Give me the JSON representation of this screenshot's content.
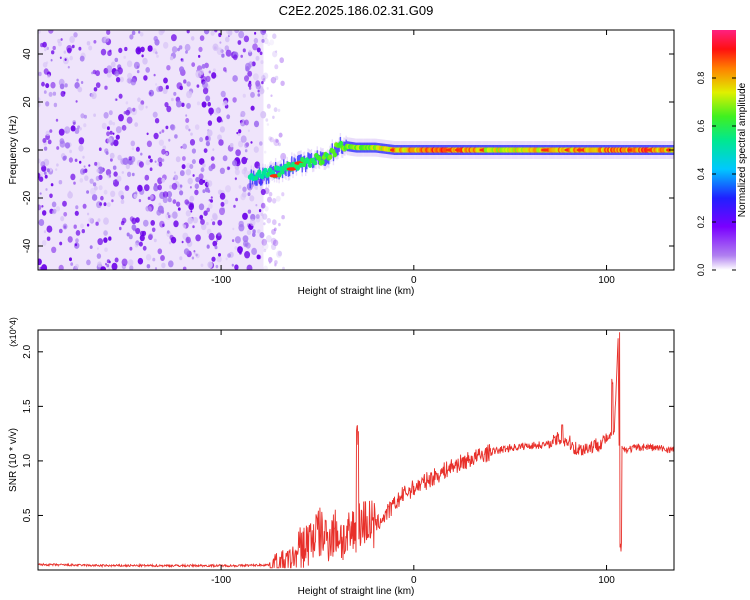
{
  "title": "C2E2.2025.186.02.31.G09",
  "colors": {
    "snr_line": "#e8302a",
    "frame": "#000000",
    "background": "#ffffff"
  },
  "chart_data": [
    {
      "type": "heatmap",
      "title": "C2E2.2025.186.02.31.G09",
      "xlabel": "Height of straight line (km)",
      "ylabel": "Frequency (Hz)",
      "xlim": [
        -195,
        135
      ],
      "ylim": [
        -50,
        50
      ],
      "xticks": [
        {
          "value": -100,
          "label": "-100"
        },
        {
          "value": 0,
          "label": "0"
        },
        {
          "value": 100,
          "label": "100"
        }
      ],
      "yticks": [
        {
          "value": -40,
          "label": "-40"
        },
        {
          "value": -20,
          "label": "-20"
        },
        {
          "value": 0,
          "label": "0"
        },
        {
          "value": 20,
          "label": "20"
        },
        {
          "value": 40,
          "label": "40"
        }
      ],
      "colorbar": {
        "label": "Normalized spectral amplitude",
        "range": [
          0,
          1
        ],
        "ticks": [
          {
            "value": 0.0,
            "label": "0.0"
          },
          {
            "value": 0.2,
            "label": "0.2"
          },
          {
            "value": 0.4,
            "label": "0.4"
          },
          {
            "value": 0.6,
            "label": "0.6"
          },
          {
            "value": 0.8,
            "label": "0.8"
          }
        ],
        "colormap": "rainbow (purple-blue-cyan-green-yellow-red-pink)"
      },
      "noise_region_x": [
        -195,
        -78
      ],
      "signal_track": {
        "x": [
          -85,
          -75,
          -65,
          -55,
          -45,
          -38,
          -30,
          -20,
          -10,
          0,
          20,
          40,
          60,
          80,
          100,
          120,
          135
        ],
        "frequency": [
          -12,
          -10,
          -7,
          -5,
          -3,
          2,
          1,
          1,
          0,
          0,
          0,
          0,
          0,
          0,
          0,
          0,
          0
        ],
        "amplitude": [
          0.3,
          0.35,
          0.4,
          0.45,
          0.5,
          0.55,
          0.6,
          0.65,
          0.75,
          0.85,
          0.9,
          0.7,
          0.72,
          0.8,
          0.85,
          0.9,
          0.7
        ]
      }
    },
    {
      "type": "line",
      "xlabel": "Height of straight line (km)",
      "ylabel": "SNR (10 * v/v)",
      "y_multiplier": "(x10^4)",
      "xlim": [
        -195,
        135
      ],
      "ylim": [
        0,
        2.2
      ],
      "xticks": [
        {
          "value": -100,
          "label": "-100"
        },
        {
          "value": 0,
          "label": "0"
        },
        {
          "value": 100,
          "label": "100"
        }
      ],
      "yticks": [
        {
          "value": 0.5,
          "label": "0.5"
        },
        {
          "value": 1.0,
          "label": "1.0"
        },
        {
          "value": 1.5,
          "label": "1.5"
        },
        {
          "value": 2.0,
          "label": "2.0"
        }
      ],
      "series": [
        {
          "x": [
            -195,
            -160,
            -120,
            -90,
            -70,
            -65,
            -60,
            -55,
            -50,
            -45,
            -40,
            -35,
            -30,
            -25,
            -20,
            -15,
            -10,
            -5,
            0,
            10,
            20,
            30,
            40,
            50,
            60,
            70,
            75,
            80,
            85,
            90,
            95,
            100,
            104,
            106,
            107,
            108,
            110,
            115,
            120,
            125,
            130,
            135
          ],
          "y": [
            0.05,
            0.04,
            0.04,
            0.04,
            0.05,
            0.08,
            0.15,
            0.25,
            0.35,
            0.3,
            0.35,
            0.25,
            0.4,
            0.45,
            0.4,
            0.5,
            0.6,
            0.7,
            0.75,
            0.85,
            0.95,
            1.02,
            1.08,
            1.12,
            1.14,
            1.15,
            1.2,
            1.18,
            1.1,
            1.12,
            1.15,
            1.2,
            1.25,
            2.1,
            0.15,
            1.12,
            1.1,
            1.12,
            1.13,
            1.12,
            1.11,
            1.1
          ]
        }
      ],
      "peaks": [
        {
          "x": -29,
          "y": 1.33
        },
        {
          "x": 103,
          "y": 1.8
        },
        {
          "x": 107,
          "y": 2.18
        },
        {
          "x": 107.5,
          "y": 0.15
        },
        {
          "x": 77,
          "y": 1.33
        }
      ]
    }
  ]
}
